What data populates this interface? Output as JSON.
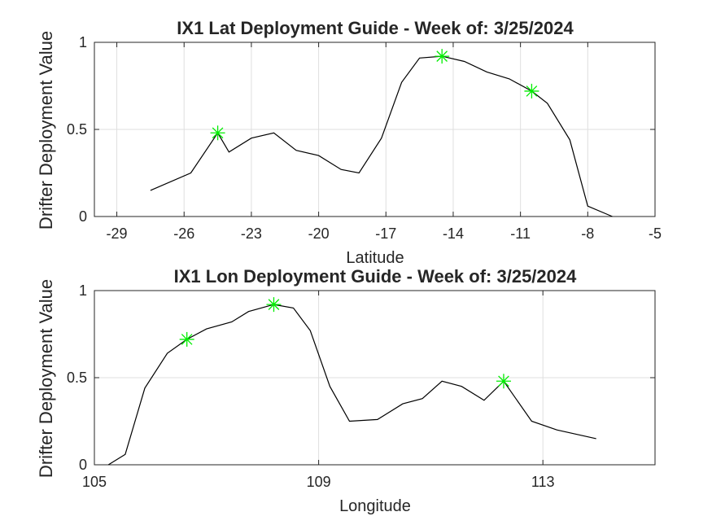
{
  "colors": {
    "line": "#000000",
    "marker": "#00ee00",
    "grid": "#dfdfdf",
    "axis": "#262626"
  },
  "shared": {
    "ylabel": "Drifter Deployment Value"
  },
  "chart_data": [
    {
      "type": "line",
      "title": "IX1 Lat Deployment Guide - Week of: 3/25/2024",
      "xlabel": "Latitude",
      "ylabel": "Drifter Deployment Value",
      "xlim": [
        -30,
        -5
      ],
      "ylim": [
        0,
        1
      ],
      "xticks": [
        -29,
        -26,
        -23,
        -20,
        -17,
        -14,
        -11,
        -8,
        -5
      ],
      "yticks": [
        0,
        0.5,
        1
      ],
      "yticklabels": [
        "0",
        "0.5",
        "1"
      ],
      "grid": true,
      "series": [
        {
          "x": [
            -27.5,
            -25.7,
            -24.5,
            -24.0,
            -23.0,
            -22.0,
            -21.0,
            -20.0,
            -19.0,
            -18.2,
            -17.2,
            -16.3,
            -15.5,
            -14.5,
            -13.5,
            -12.5,
            -11.5,
            -10.5,
            -9.8,
            -8.8,
            -8.0,
            -6.9
          ],
          "y": [
            0.15,
            0.25,
            0.48,
            0.37,
            0.45,
            0.48,
            0.38,
            0.35,
            0.27,
            0.25,
            0.45,
            0.77,
            0.91,
            0.92,
            0.89,
            0.83,
            0.79,
            0.72,
            0.65,
            0.44,
            0.06,
            0.0
          ]
        }
      ],
      "markers": {
        "x": [
          -24.5,
          -14.5,
          -10.5
        ],
        "y": [
          0.48,
          0.92,
          0.72
        ]
      }
    },
    {
      "type": "line",
      "title": "IX1 Lon Deployment Guide - Week of: 3/25/2024",
      "xlabel": "Longitude",
      "ylabel": "Drifter Deployment Value",
      "xlim": [
        105,
        115
      ],
      "ylim": [
        0,
        1
      ],
      "xticks": [
        105,
        109,
        113
      ],
      "yticks": [
        0,
        0.5,
        1
      ],
      "yticklabels": [
        "0",
        "0.5",
        "1"
      ],
      "grid": true,
      "series": [
        {
          "x": [
            105.25,
            105.55,
            105.9,
            106.3,
            106.65,
            107.0,
            107.45,
            107.75,
            108.2,
            108.55,
            108.85,
            109.2,
            109.55,
            110.05,
            110.5,
            110.85,
            111.2,
            111.55,
            111.95,
            112.3,
            112.8,
            113.25,
            113.95
          ],
          "y": [
            0.0,
            0.06,
            0.44,
            0.64,
            0.72,
            0.78,
            0.82,
            0.88,
            0.92,
            0.9,
            0.77,
            0.45,
            0.25,
            0.26,
            0.35,
            0.38,
            0.48,
            0.45,
            0.37,
            0.48,
            0.25,
            0.2,
            0.15
          ]
        }
      ],
      "markers": {
        "x": [
          106.65,
          108.2,
          112.3
        ],
        "y": [
          0.72,
          0.92,
          0.48
        ]
      }
    }
  ]
}
